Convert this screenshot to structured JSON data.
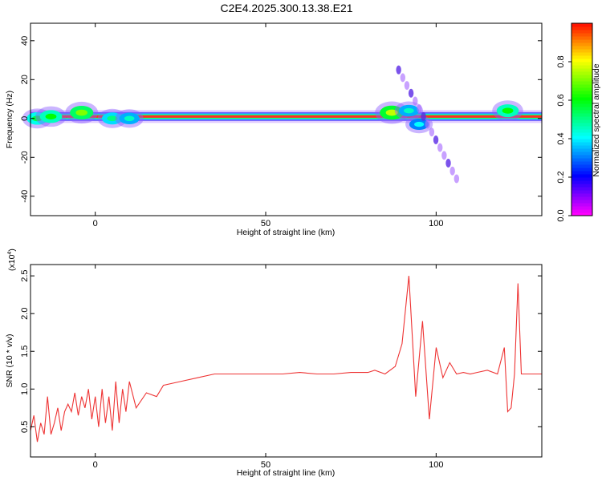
{
  "figure": {
    "title": "C2E4.2025.300.13.38.E21"
  },
  "chart_data": [
    {
      "type": "heatmap",
      "name": "spectrogram",
      "xlabel": "Height of straight line (km)",
      "ylabel": "Frequency (Hz)",
      "xlim": [
        -19,
        131
      ],
      "ylim": [
        -50,
        49
      ],
      "xticks": [
        0,
        50,
        100
      ],
      "yticks": [
        -40,
        -20,
        0,
        20,
        40
      ],
      "colorbar": {
        "label": "Normalized spectral amplitude",
        "range": [
          0,
          1
        ],
        "ticks": [
          0.0,
          0.2,
          0.4,
          0.6,
          0.8
        ]
      },
      "features": {
        "ridge_freq_hz": 1,
        "blobs": [
          {
            "x": -17,
            "y": 0,
            "amp": 0.55
          },
          {
            "x": -13,
            "y": 1,
            "amp": 0.6
          },
          {
            "x": -4,
            "y": 3,
            "amp": 0.7
          },
          {
            "x": 5,
            "y": 0,
            "amp": 0.5
          },
          {
            "x": 10,
            "y": 0,
            "amp": 0.45
          },
          {
            "x": 87,
            "y": 3,
            "amp": 0.75
          },
          {
            "x": 92,
            "y": 4,
            "amp": 0.45
          },
          {
            "x": 95,
            "y": -3,
            "amp": 0.4
          },
          {
            "x": 121,
            "y": 4,
            "amp": 0.6
          }
        ],
        "oblique_streak": {
          "x_start": 89,
          "y_start": 25,
          "x_end": 106,
          "y_end": -31
        }
      }
    },
    {
      "type": "line",
      "name": "snr",
      "xlabel": "Height of straight line (km)",
      "ylabel": "SNR (10 * v/v)",
      "y_multiplier_label": "(x10",
      "y_multiplier_exp": "4",
      "y_multiplier_close": ")",
      "xlim": [
        -19,
        131
      ],
      "ylim": [
        0.1,
        2.65
      ],
      "xticks": [
        0,
        50,
        100
      ],
      "yticks": [
        0.5,
        1.0,
        1.5,
        2.0,
        2.5
      ],
      "color": "#ee3333",
      "x": [
        -19,
        -18,
        -17,
        -16,
        -15,
        -14,
        -13,
        -12,
        -11,
        -10,
        -9,
        -8,
        -7,
        -6,
        -5,
        -4,
        -3,
        -2,
        -1,
        0,
        1,
        2,
        3,
        4,
        5,
        6,
        7,
        8,
        9,
        10,
        12,
        15,
        18,
        20,
        25,
        30,
        35,
        40,
        45,
        50,
        55,
        60,
        65,
        70,
        75,
        80,
        82,
        85,
        88,
        90,
        92,
        94,
        96,
        98,
        100,
        102,
        104,
        106,
        108,
        110,
        112,
        115,
        118,
        120,
        121,
        122,
        123,
        124,
        125,
        128,
        131
      ],
      "y": [
        0.45,
        0.65,
        0.3,
        0.55,
        0.4,
        0.9,
        0.4,
        0.55,
        0.75,
        0.45,
        0.7,
        0.8,
        0.7,
        0.95,
        0.65,
        0.9,
        0.75,
        1.0,
        0.6,
        0.9,
        0.5,
        1.0,
        0.55,
        0.9,
        0.45,
        1.1,
        0.55,
        1.0,
        0.7,
        1.1,
        0.75,
        0.95,
        0.9,
        1.05,
        1.1,
        1.15,
        1.2,
        1.2,
        1.2,
        1.2,
        1.2,
        1.22,
        1.2,
        1.2,
        1.22,
        1.22,
        1.25,
        1.2,
        1.3,
        1.6,
        2.5,
        0.9,
        1.9,
        0.6,
        1.55,
        1.15,
        1.35,
        1.2,
        1.22,
        1.2,
        1.22,
        1.25,
        1.2,
        1.55,
        0.7,
        0.75,
        1.2,
        2.4,
        1.2,
        1.2,
        1.2
      ]
    }
  ]
}
